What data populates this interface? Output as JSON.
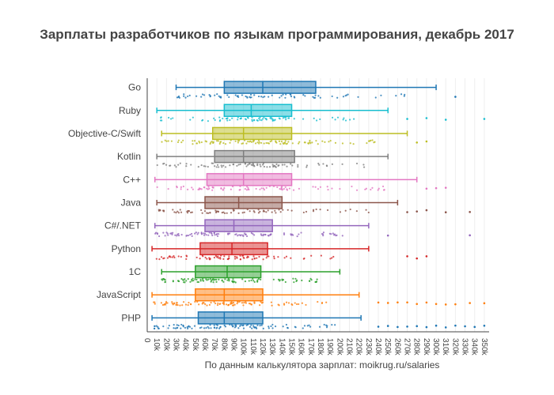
{
  "chart_data": {
    "type": "box",
    "title": "Зарплаты разработчиков по языкам программирования, декабрь 2017",
    "xlabel": "По данным калькулятора зарплат: moikrug.ru/salaries",
    "ylabel": "",
    "xlim": [
      0,
      355000
    ],
    "xticks": [
      "0",
      "10k",
      "20k",
      "30k",
      "40k",
      "50k",
      "60k",
      "70k",
      "80k",
      "90k",
      "100k",
      "110k",
      "120k",
      "130k",
      "140k",
      "150k",
      "160k",
      "170k",
      "180k",
      "190k",
      "200k",
      "210k",
      "220k",
      "230k",
      "240k",
      "250k",
      "260k",
      "270k",
      "280k",
      "290k",
      "300k",
      "310k",
      "320k",
      "330k",
      "340k",
      "350k"
    ],
    "grid": "vertical",
    "legend": "none",
    "series": [
      {
        "name": "Go",
        "color": "#1f77b4",
        "min": 30000,
        "q1": 80000,
        "median": 120000,
        "q3": 175000,
        "max": 300000,
        "outliers": [
          320000
        ]
      },
      {
        "name": "Ruby",
        "color": "#17becf",
        "min": 10000,
        "q1": 80000,
        "median": 108000,
        "q3": 150000,
        "max": 250000,
        "outliers": [
          270000,
          290000,
          310000,
          350000
        ]
      },
      {
        "name": "Objective-C/Swift",
        "color": "#bcbd22",
        "min": 15000,
        "q1": 68000,
        "median": 100000,
        "q3": 150000,
        "max": 270000,
        "outliers": [
          280000,
          290000
        ]
      },
      {
        "name": "Kotlin",
        "color": "#7f7f7f",
        "min": 10000,
        "q1": 70000,
        "median": 100000,
        "q3": 153000,
        "max": 250000,
        "outliers": []
      },
      {
        "name": "C++",
        "color": "#e377c2",
        "min": 8000,
        "q1": 62000,
        "median": 100000,
        "q3": 150000,
        "max": 280000,
        "outliers": [
          290000,
          300000,
          310000
        ]
      },
      {
        "name": "Java",
        "color": "#8c564b",
        "min": 10000,
        "q1": 60000,
        "median": 95000,
        "q3": 140000,
        "max": 260000,
        "outliers": [
          270000,
          280000,
          290000,
          310000,
          335000
        ]
      },
      {
        "name": "C#/.NET",
        "color": "#9467bd",
        "min": 8000,
        "q1": 60000,
        "median": 90000,
        "q3": 130000,
        "max": 230000,
        "outliers": [
          250000,
          335000
        ]
      },
      {
        "name": "Python",
        "color": "#d62728",
        "min": 5000,
        "q1": 55000,
        "median": 88000,
        "q3": 125000,
        "max": 230000,
        "outliers": [
          270000,
          280000,
          290000
        ]
      },
      {
        "name": "1C",
        "color": "#2ca02c",
        "min": 15000,
        "q1": 50000,
        "median": 83000,
        "q3": 118000,
        "max": 200000,
        "outliers": []
      },
      {
        "name": "JavaScript",
        "color": "#ff7f0e",
        "min": 5000,
        "q1": 50000,
        "median": 80000,
        "q3": 120000,
        "max": 220000,
        "outliers": [
          240000,
          250000,
          260000,
          270000,
          280000,
          290000,
          300000,
          310000,
          320000,
          335000,
          350000
        ]
      },
      {
        "name": "PHP",
        "color": "#1f77b4",
        "min": 5000,
        "q1": 53000,
        "median": 80000,
        "q3": 120000,
        "max": 222000,
        "outliers": [
          240000,
          250000,
          260000,
          270000,
          280000,
          290000,
          300000,
          310000,
          320000,
          330000,
          340000,
          350000
        ]
      }
    ]
  }
}
